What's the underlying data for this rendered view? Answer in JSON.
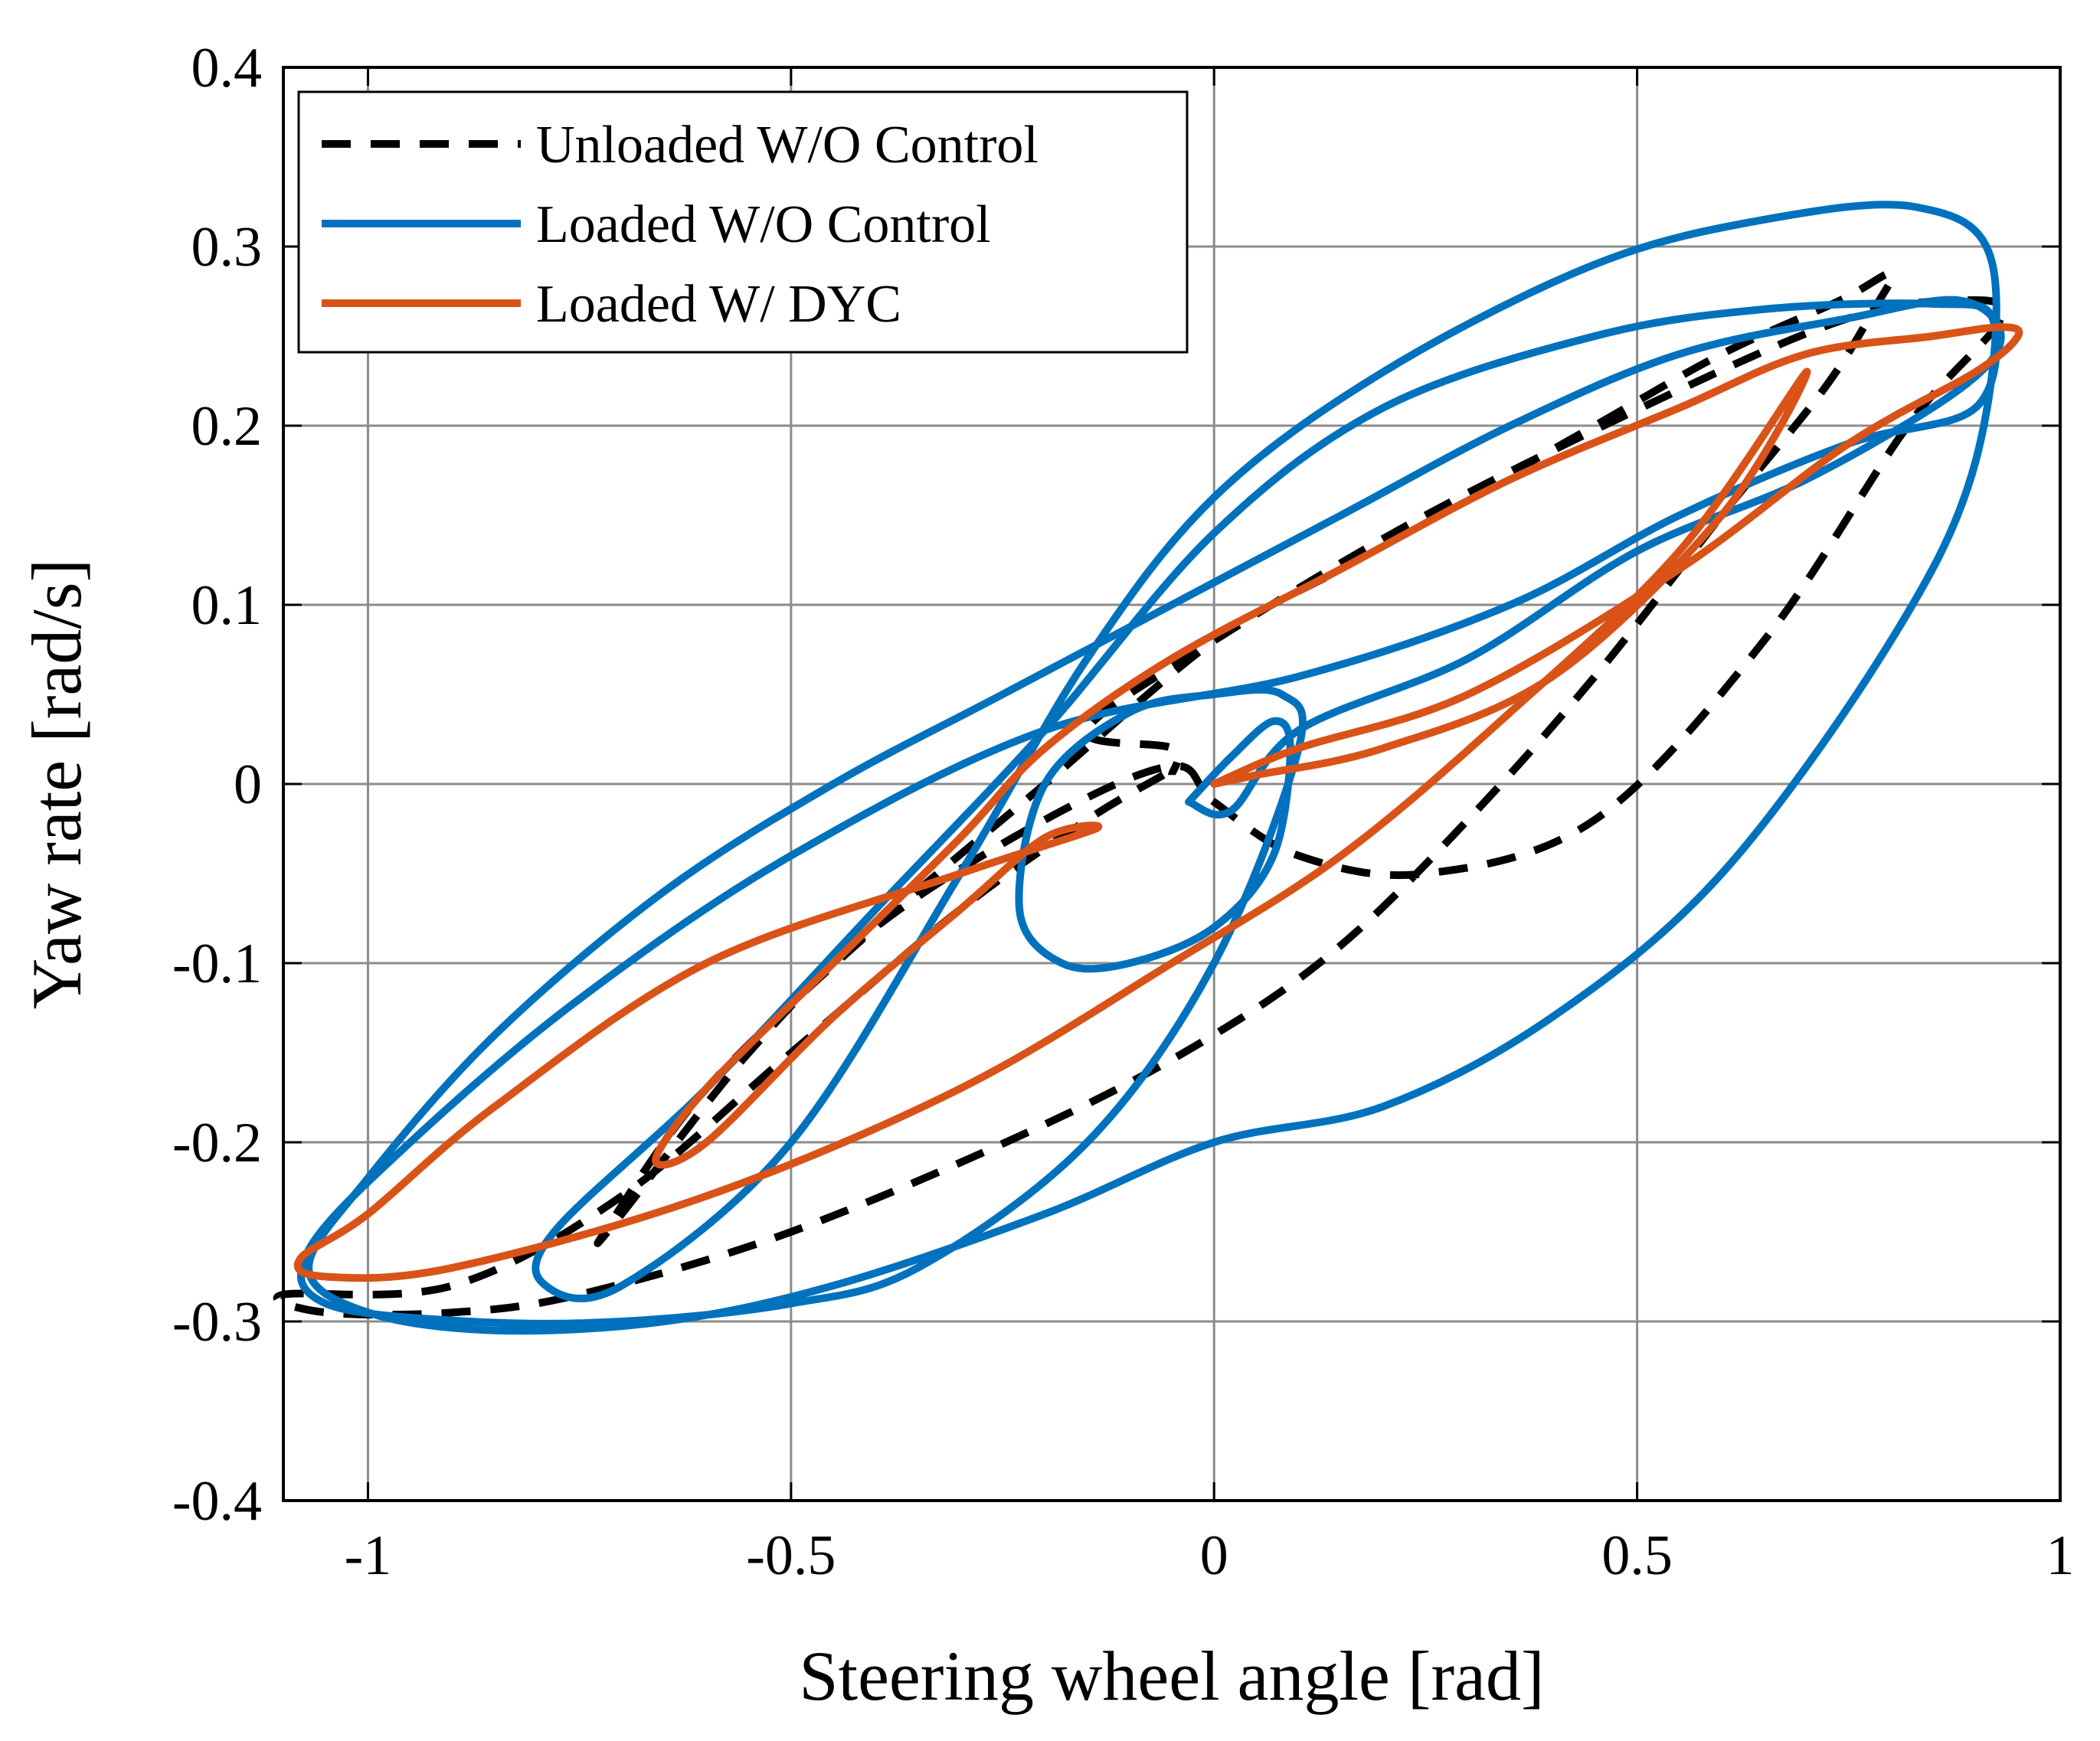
{
  "chart_data": {
    "type": "line",
    "title": "",
    "xlabel": "Steering wheel angle [rad]",
    "ylabel": "Yaw rate [rad/s]",
    "xlim": [
      -1.1,
      1.0
    ],
    "ylim": [
      -0.4,
      0.4
    ],
    "xticks": [
      -1,
      -0.5,
      0,
      0.5,
      1
    ],
    "xtick_labels": [
      "-1",
      "-0.5",
      "0",
      "0.5",
      "1"
    ],
    "yticks": [
      -0.4,
      -0.3,
      -0.2,
      -0.1,
      0,
      0.1,
      0.2,
      0.3,
      0.4
    ],
    "ytick_labels": [
      "-0.4",
      "-0.3",
      "-0.2",
      "-0.1",
      "0",
      "0.1",
      "0.2",
      "0.3",
      "0.4"
    ],
    "grid": true,
    "legend_position": "top-left",
    "series": [
      {
        "name": "Unloaded W/O Control",
        "color": "#000000",
        "style": "dashed",
        "points": [
          [
            -0.06,
            0.005
          ],
          [
            -0.15,
            -0.02
          ],
          [
            -0.3,
            -0.07
          ],
          [
            -0.5,
            -0.15
          ],
          [
            -0.7,
            -0.23
          ],
          [
            -0.9,
            -0.28
          ],
          [
            -1.1,
            -0.285
          ],
          [
            -1.05,
            -0.295
          ],
          [
            -0.9,
            -0.295
          ],
          [
            -0.75,
            -0.285
          ],
          [
            -0.5,
            -0.25
          ],
          [
            -0.2,
            -0.19
          ],
          [
            0.0,
            -0.14
          ],
          [
            0.15,
            -0.09
          ],
          [
            0.3,
            -0.02
          ],
          [
            0.45,
            0.06
          ],
          [
            0.6,
            0.15
          ],
          [
            0.72,
            0.22
          ],
          [
            0.78,
            0.265
          ],
          [
            0.8,
            0.285
          ],
          [
            0.74,
            0.27
          ],
          [
            0.6,
            0.24
          ],
          [
            0.45,
            0.2
          ],
          [
            0.3,
            0.16
          ],
          [
            0.15,
            0.12
          ],
          [
            0.0,
            0.08
          ],
          [
            -0.2,
            0.0
          ],
          [
            -0.4,
            -0.08
          ],
          [
            -0.6,
            -0.17
          ],
          [
            -0.72,
            -0.25
          ],
          [
            -0.7,
            -0.24
          ],
          [
            -0.55,
            -0.15
          ],
          [
            -0.4,
            -0.08
          ],
          [
            -0.2,
            -0.02
          ],
          [
            -0.05,
            0.01
          ],
          [
            0.0,
            -0.01
          ],
          [
            0.1,
            -0.04
          ],
          [
            0.25,
            -0.05
          ],
          [
            0.45,
            -0.02
          ],
          [
            0.65,
            0.08
          ],
          [
            0.82,
            0.2
          ],
          [
            0.93,
            0.26
          ],
          [
            0.88,
            0.27
          ],
          [
            0.75,
            0.26
          ],
          [
            0.55,
            0.22
          ],
          [
            0.25,
            0.15
          ],
          [
            0.0,
            0.08
          ],
          [
            -0.15,
            0.03
          ],
          [
            -0.05,
            0.02
          ],
          [
            -0.05,
            0.005
          ]
        ]
      },
      {
        "name": "Loaded W/O Control",
        "color": "#0072BD",
        "style": "solid",
        "points": [
          [
            -0.03,
            -0.01
          ],
          [
            0.02,
            0.015
          ],
          [
            0.07,
            0.035
          ],
          [
            0.09,
            0.02
          ],
          [
            0.07,
            -0.04
          ],
          [
            0.0,
            -0.08
          ],
          [
            -0.1,
            -0.1
          ],
          [
            -0.18,
            -0.1
          ],
          [
            -0.23,
            -0.07
          ],
          [
            -0.2,
            0.0
          ],
          [
            -0.1,
            0.04
          ],
          [
            0.0,
            0.05
          ],
          [
            0.08,
            0.05
          ],
          [
            0.1,
            0.02
          ],
          [
            0.0,
            -0.1
          ],
          [
            -0.15,
            -0.2
          ],
          [
            -0.35,
            -0.27
          ],
          [
            -0.5,
            -0.29
          ],
          [
            -0.7,
            -0.3
          ],
          [
            -0.88,
            -0.3
          ],
          [
            -1.05,
            -0.29
          ],
          [
            -1.07,
            -0.26
          ],
          [
            -0.95,
            -0.2
          ],
          [
            -0.75,
            -0.12
          ],
          [
            -0.5,
            -0.04
          ],
          [
            -0.2,
            0.03
          ],
          [
            0.1,
            0.06
          ],
          [
            0.35,
            0.1
          ],
          [
            0.55,
            0.15
          ],
          [
            0.75,
            0.19
          ],
          [
            0.9,
            0.21
          ],
          [
            0.92,
            0.26
          ],
          [
            0.85,
            0.268
          ],
          [
            0.65,
            0.265
          ],
          [
            0.45,
            0.25
          ],
          [
            0.2,
            0.21
          ],
          [
            0.0,
            0.14
          ],
          [
            -0.2,
            0.03
          ],
          [
            -0.4,
            -0.07
          ],
          [
            -0.6,
            -0.17
          ],
          [
            -0.78,
            -0.25
          ],
          [
            -0.79,
            -0.28
          ],
          [
            -0.7,
            -0.28
          ],
          [
            -0.5,
            -0.2
          ],
          [
            -0.3,
            -0.05
          ],
          [
            -0.15,
            0.07
          ],
          [
            0.0,
            0.16
          ],
          [
            0.2,
            0.23
          ],
          [
            0.45,
            0.29
          ],
          [
            0.65,
            0.315
          ],
          [
            0.83,
            0.322
          ],
          [
            0.92,
            0.29
          ],
          [
            0.9,
            0.18
          ],
          [
            0.8,
            0.08
          ],
          [
            0.6,
            -0.05
          ],
          [
            0.4,
            -0.13
          ],
          [
            0.2,
            -0.18
          ],
          [
            0.0,
            -0.2
          ],
          [
            -0.2,
            -0.24
          ],
          [
            -0.45,
            -0.28
          ],
          [
            -0.65,
            -0.3
          ],
          [
            -0.85,
            -0.305
          ],
          [
            -1.0,
            -0.295
          ],
          [
            -1.07,
            -0.27
          ],
          [
            -1.0,
            -0.22
          ],
          [
            -0.85,
            -0.14
          ],
          [
            -0.65,
            -0.06
          ],
          [
            -0.45,
            0.0
          ],
          [
            -0.25,
            0.05
          ],
          [
            -0.05,
            0.1
          ],
          [
            0.15,
            0.15
          ],
          [
            0.35,
            0.2
          ],
          [
            0.55,
            0.24
          ],
          [
            0.75,
            0.26
          ],
          [
            0.88,
            0.27
          ],
          [
            0.93,
            0.25
          ],
          [
            0.88,
            0.22
          ],
          [
            0.7,
            0.17
          ],
          [
            0.5,
            0.13
          ],
          [
            0.3,
            0.07
          ],
          [
            0.1,
            0.03
          ],
          [
            0.02,
            -0.015
          ],
          [
            -0.03,
            -0.01
          ]
        ]
      },
      {
        "name": "Loaded W/ DYC",
        "color": "#D95319",
        "style": "solid",
        "points": [
          [
            -0.0,
            0.0
          ],
          [
            0.1,
            0.02
          ],
          [
            0.3,
            0.05
          ],
          [
            0.55,
            0.12
          ],
          [
            0.75,
            0.19
          ],
          [
            0.9,
            0.23
          ],
          [
            0.95,
            0.25
          ],
          [
            0.93,
            0.255
          ],
          [
            0.85,
            0.25
          ],
          [
            0.7,
            0.24
          ],
          [
            0.55,
            0.21
          ],
          [
            0.35,
            0.17
          ],
          [
            0.15,
            0.12
          ],
          [
            -0.05,
            0.07
          ],
          [
            -0.2,
            0.02
          ],
          [
            -0.3,
            -0.03
          ],
          [
            -0.45,
            -0.1
          ],
          [
            -0.6,
            -0.17
          ],
          [
            -0.66,
            -0.21
          ],
          [
            -0.6,
            -0.2
          ],
          [
            -0.45,
            -0.13
          ],
          [
            -0.3,
            -0.07
          ],
          [
            -0.2,
            -0.03
          ],
          [
            -0.14,
            -0.025
          ],
          [
            -0.3,
            -0.05
          ],
          [
            -0.6,
            -0.1
          ],
          [
            -0.85,
            -0.18
          ],
          [
            -1.0,
            -0.24
          ],
          [
            -1.08,
            -0.265
          ],
          [
            -1.05,
            -0.275
          ],
          [
            -0.9,
            -0.27
          ],
          [
            -0.6,
            -0.23
          ],
          [
            -0.3,
            -0.17
          ],
          [
            -0.05,
            -0.1
          ],
          [
            0.15,
            -0.04
          ],
          [
            0.35,
            0.04
          ],
          [
            0.55,
            0.13
          ],
          [
            0.7,
            0.23
          ],
          [
            0.6,
            0.15
          ],
          [
            0.4,
            0.06
          ],
          [
            0.2,
            0.02
          ],
          [
            0.05,
            0.005
          ],
          [
            0.0,
            0.0
          ]
        ]
      }
    ]
  }
}
